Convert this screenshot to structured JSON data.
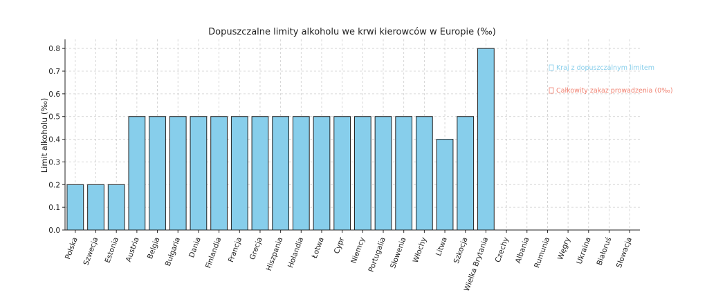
{
  "chart_data": {
    "type": "bar",
    "title": "Dopuszczalne limity alkoholu we krwi kierowców w Europie (‰)",
    "xlabel": "",
    "ylabel": "Limit alkoholu (‰)",
    "ylim": [
      0,
      0.84
    ],
    "yticks": [
      "0.0",
      "0.1",
      "0.2",
      "0.3",
      "0.4",
      "0.5",
      "0.6",
      "0.7",
      "0.8"
    ],
    "grid": true,
    "categories": [
      "Polska",
      "Szwecja",
      "Estonia",
      "Austria",
      "Belgia",
      "Bułgaria",
      "Dania",
      "Finlandia",
      "Francja",
      "Grecja",
      "Hiszpania",
      "Holandia",
      "Łotwa",
      "Cypr",
      "Niemcy",
      "Portugalia",
      "Słowenia",
      "Włochy",
      "Litwa",
      "Szkocja",
      "Wielka Brytania",
      "Czechy",
      "Albania",
      "Rumunia",
      "Węgry",
      "Ukraina",
      "Białoruś",
      "Słowacja"
    ],
    "values": [
      0.2,
      0.2,
      0.2,
      0.5,
      0.5,
      0.5,
      0.5,
      0.5,
      0.5,
      0.5,
      0.5,
      0.5,
      0.5,
      0.5,
      0.5,
      0.5,
      0.5,
      0.5,
      0.4,
      0.5,
      0.8,
      0,
      0,
      0,
      0,
      0,
      0,
      0
    ],
    "bar_color": "#87ceeb",
    "bar_edge_color": "#222222",
    "legend_placement": "right",
    "legend": [
      {
        "label": "Kraj z dopuszczalnym limitem",
        "color": "#87ceeb"
      },
      {
        "label": "Całkowity zakaz prowadzenia (0‰)",
        "color": "#f08070"
      }
    ]
  }
}
